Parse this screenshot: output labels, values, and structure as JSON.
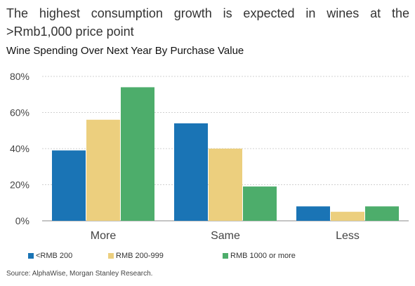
{
  "headline": "The highest consumption growth is expected in wines at the >Rmb1,000 price point",
  "source": "Source: AlphaWise, Morgan Stanley Research.",
  "chart_data": {
    "type": "bar",
    "title": "Wine Spending Over Next Year By Purchase Value",
    "categories": [
      "More",
      "Same",
      "Less"
    ],
    "series": [
      {
        "name": "<RMB 200",
        "values": [
          39,
          54,
          8
        ],
        "color": "#1a74b5"
      },
      {
        "name": "RMB 200-999",
        "values": [
          56,
          40,
          5
        ],
        "color": "#eccf7e"
      },
      {
        "name": "RMB 1000 or more",
        "values": [
          74,
          19,
          8
        ],
        "color": "#4dad6b"
      }
    ],
    "ylim": [
      0,
      80
    ],
    "yticks": [
      "0%",
      "20%",
      "40%",
      "60%",
      "80%"
    ],
    "grid": true,
    "legend": "bottom-left"
  }
}
